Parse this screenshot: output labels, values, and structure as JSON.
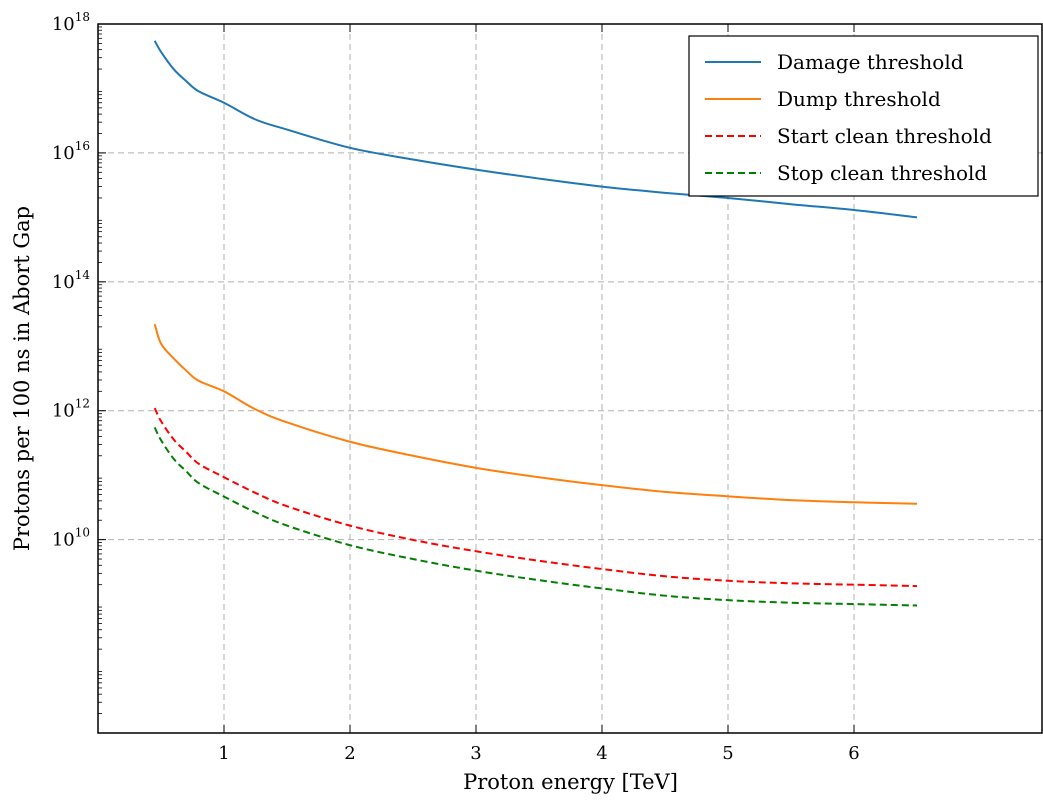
{
  "chart_data": {
    "type": "line",
    "xlabel": "Proton energy [TeV]",
    "ylabel": "Protons per 100 ns in Abort Gap",
    "xlim": [
      0.0,
      7.5
    ],
    "ylim_log10": [
      7,
      18
    ],
    "yscale": "log",
    "grid": true,
    "legend_placement": "top-right",
    "xticks": [
      1,
      2,
      3,
      4,
      5,
      6
    ],
    "xtick_labels": [
      "1",
      "2",
      "3",
      "4",
      "5",
      "6"
    ],
    "yticks_exp": [
      10,
      12,
      14,
      16,
      18
    ],
    "ytick_base": "10",
    "x": [
      0.45,
      0.5,
      0.6,
      0.7,
      0.8,
      1.0,
      1.25,
      1.5,
      2.0,
      2.5,
      3.0,
      3.5,
      4.0,
      4.5,
      5.0,
      5.5,
      6.0,
      6.5
    ],
    "series": [
      {
        "name": "Damage threshold",
        "color": "#1f77b4",
        "dash": "solid",
        "values": [
          5.5e+17,
          3.7e+17,
          2e+17,
          1.3e+17,
          9e+16,
          6e+16,
          3.3e+16,
          2.3e+16,
          1.2e+16,
          7900000000000000.0,
          5500000000000000.0,
          4000000000000000.0,
          3000000000000000.0,
          2400000000000000.0,
          2000000000000000.0,
          1600000000000000.0,
          1300000000000000.0,
          1000000000000000.0
        ]
      },
      {
        "name": "Dump threshold",
        "color": "#ff7f0e",
        "dash": "solid",
        "values": [
          22000000000000.0,
          11000000000000.0,
          6500000000000.0,
          4200000000000.0,
          2900000000000.0,
          2000000000000.0,
          1050000000000.0,
          660000000000.0,
          330000000000.0,
          200000000000.0,
          130000000000.0,
          93000000000.0,
          70000000000.0,
          55000000000.0,
          47000000000.0,
          41000000000.0,
          38000000000.0,
          36000000000.0
        ]
      },
      {
        "name": "Start clean threshold",
        "color": "#ff0000",
        "dash": "dashed",
        "values": [
          1100000000000.0,
          690000000000.0,
          360000000000.0,
          230000000000.0,
          150000000000.0,
          93000000000.0,
          53000000000.0,
          33000000000.0,
          16500000000.0,
          9900000000.0,
          6600000000.0,
          4700000000.0,
          3500000000.0,
          2700000000.0,
          2300000000.0,
          2100000000.0,
          2000000000.0,
          1900000000.0
        ]
      },
      {
        "name": "Stop clean threshold",
        "color": "#008000",
        "dash": "dashed",
        "values": [
          550000000000.0,
          350000000000.0,
          180000000000.0,
          115000000000.0,
          75000000000.0,
          46500000000.0,
          26500000000.0,
          16500000000.0,
          8200000000.0,
          5000000000.0,
          3300000000.0,
          2350000000.0,
          1750000000.0,
          1350000000.0,
          1150000000.0,
          1050000000.0,
          1000000000.0,
          950000000.0
        ]
      }
    ]
  }
}
